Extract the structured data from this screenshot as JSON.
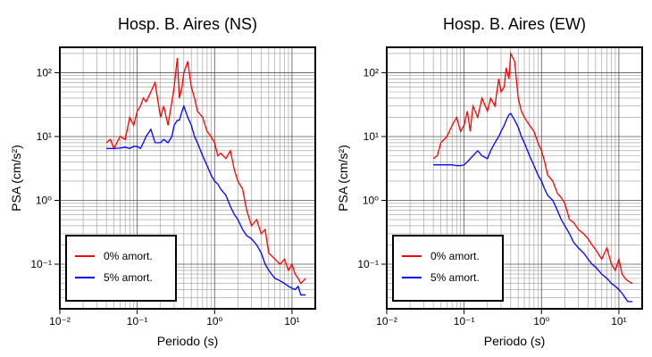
{
  "chart_data": [
    {
      "type": "line",
      "title": "Hosp. B. Aires (NS)",
      "x_label": "Periodo (s)",
      "y_label": "PSA (cm/s²)",
      "xscale": "log",
      "yscale": "log",
      "grid": true,
      "legend": "lower left",
      "xlim": [
        0.01,
        20
      ],
      "ylim": [
        0.02,
        250
      ],
      "xticks": [
        {
          "value": 0.01,
          "label": "10⁻²"
        },
        {
          "value": 0.1,
          "label": "10⁻¹"
        },
        {
          "value": 1,
          "label": "10⁰"
        },
        {
          "value": 10,
          "label": "10¹"
        }
      ],
      "yticks": [
        {
          "value": 0.1,
          "label": "10⁻¹"
        },
        {
          "value": 1,
          "label": "10⁰"
        },
        {
          "value": 10,
          "label": "10¹"
        },
        {
          "value": 100,
          "label": "10²"
        }
      ],
      "xminorticks": [
        0.02,
        0.03,
        0.04,
        0.05,
        0.06,
        0.07,
        0.08,
        0.09,
        0.2,
        0.3,
        0.4,
        0.5,
        0.6,
        0.7,
        0.8,
        0.9,
        2,
        3,
        4,
        5,
        6,
        7,
        8,
        9,
        20
      ],
      "yminorticks": [
        0.02,
        0.03,
        0.04,
        0.05,
        0.06,
        0.07,
        0.08,
        0.09,
        0.2,
        0.3,
        0.4,
        0.5,
        0.6,
        0.7,
        0.8,
        0.9,
        2,
        3,
        4,
        5,
        6,
        7,
        8,
        9,
        20,
        30,
        40,
        50,
        60,
        70,
        80,
        90,
        200
      ],
      "x": [
        0.04,
        0.045,
        0.05,
        0.06,
        0.07,
        0.08,
        0.09,
        0.1,
        0.11,
        0.12,
        0.13,
        0.15,
        0.17,
        0.2,
        0.22,
        0.25,
        0.28,
        0.3,
        0.33,
        0.35,
        0.38,
        0.4,
        0.45,
        0.5,
        0.55,
        0.6,
        0.7,
        0.8,
        0.9,
        1.0,
        1.1,
        1.2,
        1.4,
        1.6,
        1.8,
        2.0,
        2.3,
        2.6,
        3.0,
        3.5,
        4,
        4.5,
        5,
        6,
        7,
        8,
        9,
        10,
        11,
        12,
        13,
        15
      ],
      "series": [
        {
          "name": "0% amort.",
          "color": "#ff0000",
          "values": [
            8,
            9,
            6.5,
            10,
            9,
            20,
            15,
            25,
            30,
            40,
            35,
            50,
            70,
            20,
            30,
            15,
            35,
            60,
            170,
            40,
            60,
            100,
            150,
            60,
            40,
            25,
            20,
            12,
            10,
            8,
            5,
            5.5,
            4.5,
            6,
            3,
            2,
            1.5,
            0.7,
            0.4,
            0.5,
            0.3,
            0.35,
            0.15,
            0.12,
            0.1,
            0.12,
            0.08,
            0.1,
            0.07,
            0.06,
            0.05,
            0.06
          ]
        },
        {
          "name": "5% amort.",
          "color": "#0000ff",
          "values": [
            6.5,
            6.5,
            6.5,
            6.6,
            6.8,
            6.5,
            7,
            7,
            6.5,
            8,
            10,
            13,
            8,
            8,
            9,
            8,
            10,
            15,
            18,
            18,
            25,
            30,
            20,
            15,
            10,
            8,
            5,
            3.5,
            2.5,
            2,
            1.8,
            1.5,
            1.2,
            0.8,
            0.6,
            0.5,
            0.35,
            0.28,
            0.25,
            0.2,
            0.15,
            0.1,
            0.08,
            0.06,
            0.055,
            0.05,
            0.045,
            0.042,
            0.04,
            0.045,
            0.033,
            0.033
          ]
        }
      ]
    },
    {
      "type": "line",
      "title": "Hosp. B. Aires (EW)",
      "x_label": "Periodo (s)",
      "y_label": "PSA (cm/s²)",
      "xscale": "log",
      "yscale": "log",
      "grid": true,
      "legend": "lower left",
      "xlim": [
        0.01,
        20
      ],
      "ylim": [
        0.02,
        250
      ],
      "xticks": [
        {
          "value": 0.01,
          "label": "10⁻²"
        },
        {
          "value": 0.1,
          "label": "10⁻¹"
        },
        {
          "value": 1,
          "label": "10⁰"
        },
        {
          "value": 10,
          "label": "10¹"
        }
      ],
      "yticks": [
        {
          "value": 0.1,
          "label": "10⁻¹"
        },
        {
          "value": 1,
          "label": "10⁰"
        },
        {
          "value": 10,
          "label": "10¹"
        },
        {
          "value": 100,
          "label": "10²"
        }
      ],
      "xminorticks": [
        0.02,
        0.03,
        0.04,
        0.05,
        0.06,
        0.07,
        0.08,
        0.09,
        0.2,
        0.3,
        0.4,
        0.5,
        0.6,
        0.7,
        0.8,
        0.9,
        2,
        3,
        4,
        5,
        6,
        7,
        8,
        9,
        20
      ],
      "yminorticks": [
        0.02,
        0.03,
        0.04,
        0.05,
        0.06,
        0.07,
        0.08,
        0.09,
        0.2,
        0.3,
        0.4,
        0.5,
        0.6,
        0.7,
        0.8,
        0.9,
        2,
        3,
        4,
        5,
        6,
        7,
        8,
        9,
        20,
        30,
        40,
        50,
        60,
        70,
        80,
        90,
        200
      ],
      "x": [
        0.04,
        0.045,
        0.05,
        0.06,
        0.07,
        0.08,
        0.09,
        0.1,
        0.11,
        0.12,
        0.13,
        0.15,
        0.17,
        0.2,
        0.22,
        0.25,
        0.28,
        0.3,
        0.33,
        0.35,
        0.38,
        0.4,
        0.45,
        0.5,
        0.55,
        0.6,
        0.7,
        0.8,
        0.9,
        1.0,
        1.1,
        1.2,
        1.4,
        1.6,
        1.8,
        2.0,
        2.3,
        2.6,
        3.0,
        3.5,
        4,
        4.5,
        5,
        6,
        7,
        8,
        9,
        10,
        11,
        12,
        13,
        15
      ],
      "series": [
        {
          "name": "0% amort.",
          "color": "#ff0000",
          "values": [
            4.5,
            5,
            8,
            10,
            15,
            20,
            12,
            15,
            25,
            12,
            30,
            20,
            40,
            25,
            40,
            30,
            80,
            50,
            60,
            120,
            80,
            200,
            150,
            40,
            25,
            20,
            15,
            12,
            8,
            6,
            4,
            2.5,
            2,
            1.3,
            1.1,
            0.9,
            0.5,
            0.45,
            0.35,
            0.3,
            0.25,
            0.2,
            0.17,
            0.12,
            0.18,
            0.1,
            0.08,
            0.12,
            0.07,
            0.06,
            0.055,
            0.05
          ]
        },
        {
          "name": "5% amort.",
          "color": "#0000ff",
          "values": [
            3.6,
            3.6,
            3.6,
            3.6,
            3.6,
            3.5,
            3.5,
            3.6,
            4,
            4.5,
            5,
            6,
            5,
            4.5,
            6,
            8,
            10,
            12,
            15,
            18,
            22,
            23,
            18,
            14,
            10,
            8,
            5,
            3.5,
            2.5,
            2,
            1.5,
            1.2,
            1.0,
            0.7,
            0.5,
            0.4,
            0.3,
            0.22,
            0.18,
            0.15,
            0.12,
            0.1,
            0.09,
            0.07,
            0.06,
            0.05,
            0.045,
            0.04,
            0.035,
            0.03,
            0.026,
            0.026
          ]
        }
      ]
    }
  ]
}
